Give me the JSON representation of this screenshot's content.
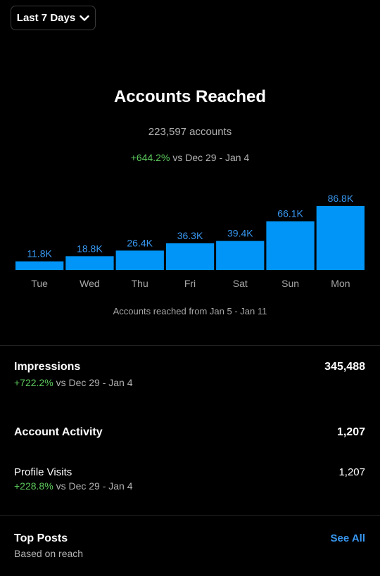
{
  "date_range": {
    "label": "Last 7 Days"
  },
  "accounts_reached": {
    "title": "Accounts Reached",
    "count_text": "223,597 accounts",
    "change": "+644.2%",
    "comparison": "vs Dec 29 - Jan 4",
    "caption": "Accounts reached from Jan 5 - Jan 11"
  },
  "chart_data": {
    "type": "bar",
    "categories": [
      "Tue",
      "Wed",
      "Thu",
      "Fri",
      "Sat",
      "Sun",
      "Mon"
    ],
    "values": [
      11.8,
      18.8,
      26.4,
      36.3,
      39.4,
      66.1,
      86.8
    ],
    "value_labels": [
      "11.8K",
      "18.8K",
      "26.4K",
      "36.3K",
      "39.4K",
      "66.1K",
      "86.8K"
    ],
    "unit": "K",
    "ylim": [
      0,
      100
    ],
    "grid": false,
    "bar_color": "#0095f6",
    "label_color": "#3897f0"
  },
  "impressions": {
    "label": "Impressions",
    "value": "345,488",
    "change": "+722.2%",
    "comparison": "vs Dec 29 - Jan 4"
  },
  "account_activity": {
    "label": "Account Activity",
    "value": "1,207",
    "profile_visits": {
      "label": "Profile Visits",
      "value": "1,207",
      "change": "+228.8%",
      "comparison": "vs Dec 29 - Jan 4"
    }
  },
  "top_posts": {
    "label": "Top Posts",
    "subtitle": "Based on reach",
    "see_all": "See All"
  },
  "colors": {
    "positive": "#5cc85c",
    "accent": "#3897f0",
    "background": "#000000"
  }
}
